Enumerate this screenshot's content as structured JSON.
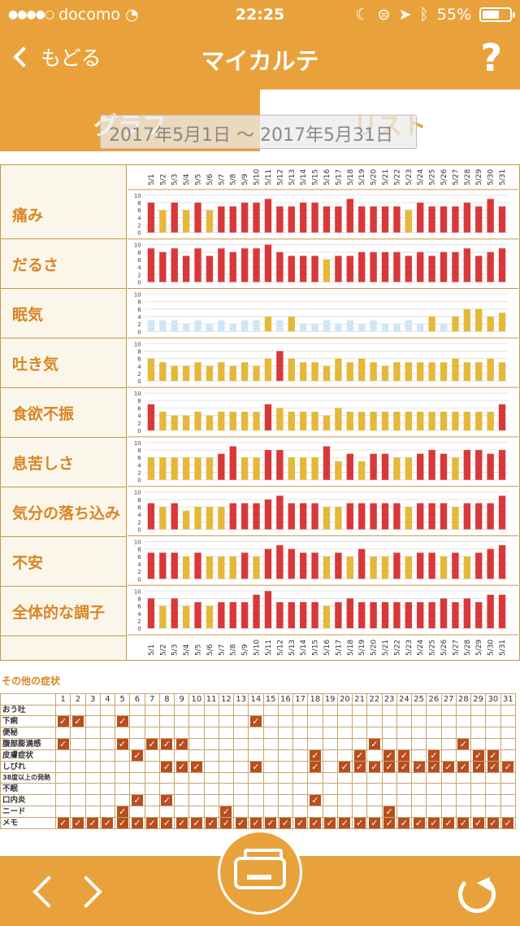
{
  "status": {
    "carrier": "docomo",
    "time": "22:25",
    "battery": "55%"
  },
  "nav": {
    "back_label": "もどる",
    "title": "マイカルテ",
    "help": "?"
  },
  "segments": {
    "graph": "グラフ",
    "list": "リスト"
  },
  "date_range": "2017年5月1日 〜 2017年5月31日",
  "colors": {
    "accent": "#e9a23b",
    "red": "#d9383a",
    "yellow": "#e5b83a",
    "lightblue": "#cfe6f5",
    "check": "#b84e1e"
  },
  "chart_data": {
    "type": "bar",
    "categories": [
      "5/1",
      "5/2",
      "5/3",
      "5/4",
      "5/5",
      "5/6",
      "5/7",
      "5/8",
      "5/9",
      "5/10",
      "5/11",
      "5/12",
      "5/13",
      "5/14",
      "5/15",
      "5/16",
      "5/17",
      "5/18",
      "5/19",
      "5/20",
      "5/21",
      "5/22",
      "5/23",
      "5/24",
      "5/25",
      "5/26",
      "5/27",
      "5/28",
      "5/29",
      "5/30",
      "5/31"
    ],
    "ylim": [
      0,
      10
    ],
    "yticks": [
      "0",
      "2",
      "4",
      "6",
      "8",
      "10"
    ],
    "series": [
      {
        "name": "痛み",
        "values": [
          8,
          6,
          8,
          6,
          8,
          6,
          7,
          7,
          8,
          8,
          9,
          7,
          7,
          8,
          8,
          7,
          7,
          9,
          7,
          7,
          7,
          7,
          6,
          8,
          7,
          7,
          7,
          8,
          7,
          9,
          7
        ]
      },
      {
        "name": "だるさ",
        "values": [
          9,
          8,
          9,
          7,
          9,
          7,
          9,
          8,
          9,
          9,
          10,
          8,
          7,
          7,
          7,
          6,
          7,
          7,
          8,
          8,
          8,
          8,
          7,
          8,
          7,
          8,
          8,
          9,
          7,
          8,
          9
        ]
      },
      {
        "name": "眠気",
        "values": [
          3,
          3,
          3,
          2,
          3,
          2,
          3,
          2,
          3,
          3,
          4,
          3,
          4,
          2,
          2,
          3,
          2,
          3,
          2,
          3,
          2,
          2,
          3,
          2,
          4,
          2,
          4,
          6,
          6,
          4,
          5
        ]
      },
      {
        "name": "吐き気",
        "values": [
          6,
          5,
          4,
          4,
          5,
          4,
          5,
          4,
          5,
          4,
          6,
          8,
          6,
          5,
          5,
          4,
          6,
          5,
          6,
          5,
          4,
          5,
          5,
          5,
          5,
          5,
          6,
          5,
          5,
          6,
          5
        ]
      },
      {
        "name": "食欲不振",
        "values": [
          7,
          5,
          4,
          4,
          5,
          4,
          5,
          5,
          5,
          5,
          7,
          6,
          5,
          5,
          5,
          4,
          6,
          5,
          5,
          5,
          5,
          5,
          5,
          5,
          5,
          5,
          5,
          5,
          5,
          5,
          7
        ]
      },
      {
        "name": "息苦しさ",
        "values": [
          6,
          6,
          6,
          6,
          6,
          6,
          7,
          9,
          6,
          6,
          8,
          8,
          6,
          6,
          6,
          9,
          5,
          7,
          5,
          7,
          7,
          6,
          6,
          7,
          8,
          7,
          6,
          8,
          8,
          7,
          8
        ]
      },
      {
        "name": "気分の落ち込み",
        "values": [
          7,
          6,
          7,
          5,
          6,
          6,
          6,
          7,
          7,
          7,
          8,
          9,
          7,
          7,
          7,
          6,
          6,
          7,
          7,
          7,
          7,
          7,
          6,
          7,
          7,
          7,
          6,
          7,
          7,
          7,
          9
        ]
      },
      {
        "name": "不安",
        "values": [
          7,
          7,
          7,
          6,
          7,
          6,
          6,
          6,
          7,
          6,
          8,
          9,
          8,
          7,
          7,
          6,
          7,
          6,
          8,
          6,
          6,
          7,
          6,
          7,
          7,
          6,
          7,
          6,
          7,
          8,
          9
        ]
      },
      {
        "name": "全体的な調子",
        "values": [
          8,
          6,
          8,
          6,
          7,
          6,
          7,
          7,
          7,
          9,
          10,
          7,
          7,
          7,
          7,
          6,
          7,
          8,
          7,
          7,
          7,
          7,
          7,
          7,
          7,
          8,
          7,
          8,
          7,
          9,
          9
        ]
      }
    ]
  },
  "other": {
    "title": "その他の症状",
    "days": [
      "1",
      "2",
      "3",
      "4",
      "5",
      "6",
      "7",
      "8",
      "9",
      "10",
      "11",
      "12",
      "13",
      "14",
      "15",
      "16",
      "17",
      "18",
      "19",
      "20",
      "21",
      "22",
      "23",
      "24",
      "25",
      "26",
      "27",
      "28",
      "29",
      "30",
      "31"
    ],
    "check_glyph": "✓",
    "rows": [
      {
        "name": "おう吐",
        "checks": []
      },
      {
        "name": "下痢",
        "checks": [
          1,
          2,
          5,
          14
        ]
      },
      {
        "name": "便秘",
        "checks": []
      },
      {
        "name": "腹部膨満感",
        "checks": [
          1,
          5,
          7,
          8,
          9,
          22,
          28
        ]
      },
      {
        "name": "皮膚症状",
        "checks": [
          6,
          18,
          21,
          23,
          24,
          26,
          29,
          30
        ]
      },
      {
        "name": "しびれ",
        "checks": [
          8,
          9,
          10,
          14,
          18,
          20,
          21,
          22,
          23,
          24,
          25,
          26,
          27,
          28,
          29,
          30,
          31
        ]
      },
      {
        "name": "38度以上の発熱",
        "checks": []
      },
      {
        "name": "不眠",
        "checks": []
      },
      {
        "name": "口内炎",
        "checks": [
          6,
          8,
          18
        ]
      },
      {
        "name": "ニード",
        "checks": [
          5,
          12,
          23
        ]
      },
      {
        "name": "メモ",
        "checks": [
          1,
          2,
          3,
          4,
          5,
          6,
          7,
          8,
          9,
          10,
          11,
          12,
          13,
          14,
          15,
          16,
          17,
          18,
          19,
          20,
          21,
          22,
          23,
          24,
          25,
          26,
          27,
          28,
          29,
          30,
          31
        ]
      }
    ]
  }
}
